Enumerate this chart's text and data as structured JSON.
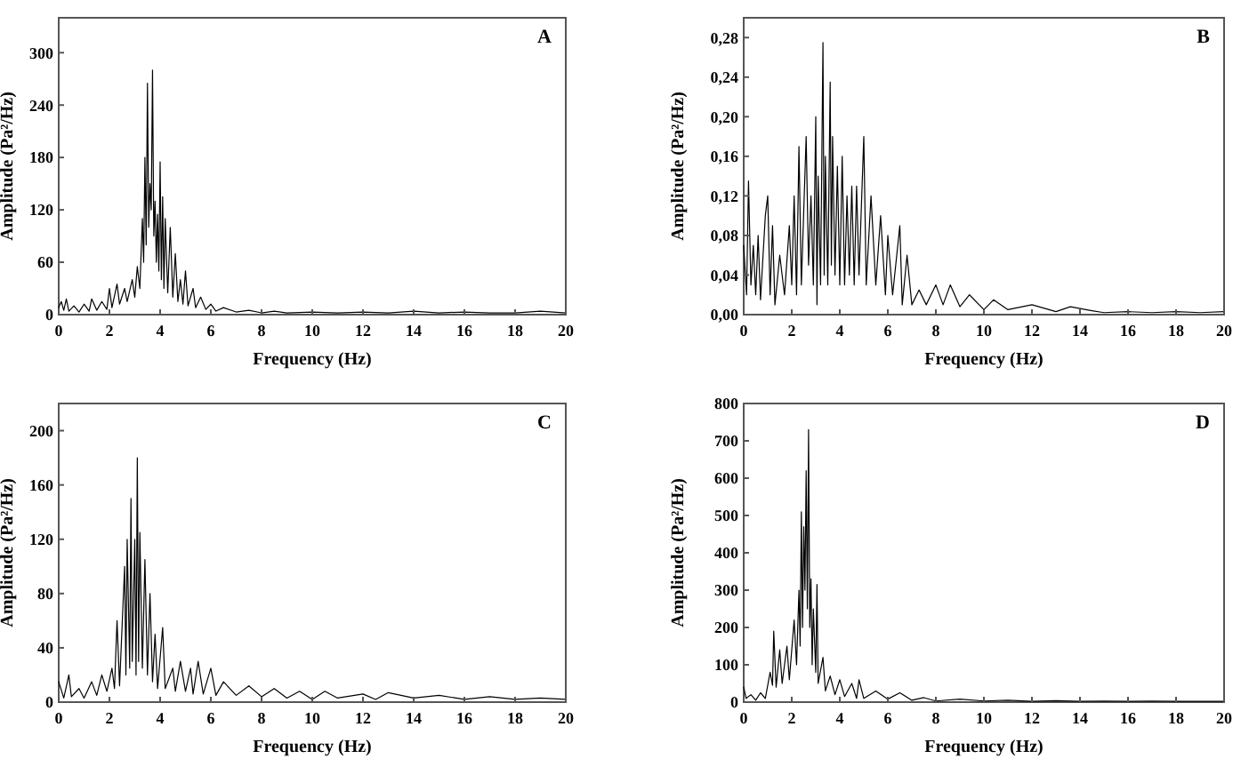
{
  "chart_data": [
    {
      "type": "line",
      "title": "A",
      "xlabel": "Frequency (Hz)",
      "ylabel": "Amplitude (Pa²/Hz)",
      "xlim": [
        0,
        20
      ],
      "xticks": [
        0,
        2,
        4,
        6,
        8,
        10,
        12,
        14,
        16,
        18,
        20
      ],
      "ylim": [
        0,
        340
      ],
      "yticks": [
        0,
        60,
        120,
        180,
        240,
        300
      ],
      "x": [
        0,
        0.1,
        0.2,
        0.3,
        0.4,
        0.6,
        0.8,
        1.0,
        1.2,
        1.3,
        1.5,
        1.7,
        1.9,
        2.0,
        2.1,
        2.3,
        2.4,
        2.6,
        2.7,
        2.9,
        3.0,
        3.1,
        3.2,
        3.3,
        3.35,
        3.4,
        3.45,
        3.5,
        3.55,
        3.6,
        3.65,
        3.7,
        3.75,
        3.8,
        3.85,
        3.9,
        3.95,
        4.0,
        4.05,
        4.1,
        4.15,
        4.2,
        4.3,
        4.4,
        4.5,
        4.6,
        4.7,
        4.8,
        4.9,
        5.0,
        5.1,
        5.3,
        5.4,
        5.6,
        5.8,
        6.0,
        6.2,
        6.5,
        7,
        7.5,
        8,
        8.5,
        9,
        10,
        11,
        12,
        13,
        14,
        15,
        16,
        17,
        18,
        19,
        20
      ],
      "series": [
        {
          "color": "#000000",
          "values": [
            8,
            15,
            5,
            18,
            4,
            10,
            3,
            12,
            4,
            18,
            5,
            15,
            6,
            30,
            8,
            35,
            12,
            30,
            15,
            40,
            20,
            55,
            30,
            110,
            60,
            180,
            80,
            265,
            100,
            150,
            120,
            280,
            90,
            130,
            60,
            115,
            50,
            175,
            40,
            135,
            30,
            110,
            25,
            100,
            20,
            70,
            15,
            40,
            12,
            50,
            10,
            30,
            8,
            20,
            6,
            12,
            4,
            8,
            3,
            5,
            2,
            4,
            2,
            3,
            2,
            3,
            2,
            4,
            2,
            3,
            2,
            2,
            4,
            2
          ]
        }
      ]
    },
    {
      "type": "line",
      "title": "B",
      "xlabel": "Frequency (Hz)",
      "ylabel": "Amplitude (Pa²/Hz)",
      "xlim": [
        0,
        20
      ],
      "xticks": [
        0,
        2,
        4,
        6,
        8,
        10,
        12,
        14,
        16,
        18,
        20
      ],
      "ylim": [
        0,
        0.3
      ],
      "yticks": [
        {
          "value": 0,
          "label": "0,00"
        },
        {
          "value": 0.04,
          "label": "0,04"
        },
        {
          "value": 0.08,
          "label": "0,08"
        },
        {
          "value": 0.12,
          "label": "0,12"
        },
        {
          "value": 0.16,
          "label": "0,16"
        },
        {
          "value": 0.2,
          "label": "0,20"
        },
        {
          "value": 0.24,
          "label": "0,24"
        },
        {
          "value": 0.28,
          "label": "0,28"
        }
      ],
      "x": [
        0,
        0.12,
        0.2,
        0.3,
        0.4,
        0.5,
        0.6,
        0.7,
        0.9,
        1.0,
        1.1,
        1.2,
        1.3,
        1.5,
        1.7,
        1.9,
        2.0,
        2.1,
        2.2,
        2.3,
        2.4,
        2.6,
        2.7,
        2.8,
        2.9,
        3.0,
        3.05,
        3.1,
        3.2,
        3.3,
        3.35,
        3.4,
        3.5,
        3.6,
        3.65,
        3.7,
        3.8,
        3.9,
        4.0,
        4.1,
        4.2,
        4.3,
        4.4,
        4.5,
        4.6,
        4.7,
        4.8,
        5.0,
        5.1,
        5.3,
        5.5,
        5.7,
        5.9,
        6.0,
        6.2,
        6.5,
        6.6,
        6.8,
        7.0,
        7.3,
        7.6,
        8.0,
        8.3,
        8.6,
        9,
        9.4,
        10,
        10.4,
        11,
        12,
        13,
        13.6,
        14.5,
        15,
        16,
        17,
        18,
        19,
        20
      ],
      "series": [
        {
          "color": "#000000",
          "values": [
            0.07,
            0.02,
            0.135,
            0.03,
            0.07,
            0.02,
            0.08,
            0.015,
            0.1,
            0.12,
            0.02,
            0.09,
            0.01,
            0.06,
            0.02,
            0.09,
            0.03,
            0.12,
            0.02,
            0.17,
            0.03,
            0.18,
            0.05,
            0.12,
            0.03,
            0.2,
            0.01,
            0.14,
            0.03,
            0.275,
            0.04,
            0.16,
            0.03,
            0.235,
            0.05,
            0.18,
            0.04,
            0.15,
            0.03,
            0.16,
            0.03,
            0.12,
            0.04,
            0.13,
            0.03,
            0.13,
            0.04,
            0.18,
            0.03,
            0.12,
            0.03,
            0.1,
            0.02,
            0.08,
            0.02,
            0.09,
            0.01,
            0.06,
            0.01,
            0.025,
            0.01,
            0.03,
            0.01,
            0.03,
            0.008,
            0.02,
            0.005,
            0.015,
            0.005,
            0.01,
            0.003,
            0.008,
            0.004,
            0.002,
            0.003,
            0.002,
            0.003,
            0.002,
            0.003
          ]
        }
      ]
    },
    {
      "type": "line",
      "title": "C",
      "xlabel": "Frequency (Hz)",
      "ylabel": "Amplitude (Pa²/Hz)",
      "xlim": [
        0,
        20
      ],
      "xticks": [
        0,
        2,
        4,
        6,
        8,
        10,
        12,
        14,
        16,
        18,
        20
      ],
      "ylim": [
        0,
        220
      ],
      "yticks": [
        0,
        40,
        80,
        120,
        160,
        200
      ],
      "x": [
        0,
        0.2,
        0.4,
        0.5,
        0.8,
        1.0,
        1.3,
        1.5,
        1.7,
        1.9,
        2.1,
        2.2,
        2.3,
        2.4,
        2.6,
        2.65,
        2.7,
        2.8,
        2.85,
        2.9,
        3.0,
        3.05,
        3.1,
        3.15,
        3.2,
        3.3,
        3.4,
        3.5,
        3.6,
        3.7,
        3.8,
        3.9,
        4.1,
        4.2,
        4.5,
        4.6,
        4.8,
        5.0,
        5.2,
        5.3,
        5.5,
        5.7,
        6.0,
        6.2,
        6.5,
        7.0,
        7.5,
        8.0,
        8.5,
        9,
        9.5,
        10,
        10.5,
        11,
        12,
        12.5,
        13,
        14,
        15,
        16,
        17,
        18,
        19,
        20
      ],
      "series": [
        {
          "color": "#000000",
          "values": [
            15,
            3,
            20,
            4,
            10,
            3,
            15,
            5,
            20,
            8,
            25,
            10,
            60,
            12,
            100,
            20,
            120,
            25,
            150,
            30,
            120,
            20,
            180,
            30,
            125,
            25,
            105,
            20,
            80,
            15,
            50,
            10,
            55,
            10,
            25,
            8,
            30,
            8,
            25,
            6,
            30,
            6,
            25,
            5,
            15,
            5,
            12,
            4,
            10,
            3,
            8,
            2,
            8,
            3,
            6,
            2,
            7,
            3,
            5,
            2,
            4,
            2,
            3,
            2
          ]
        }
      ]
    },
    {
      "type": "line",
      "title": "D",
      "xlabel": "Frequency (Hz)",
      "ylabel": "Amplitude (Pa²/Hz)",
      "xlim": [
        0,
        20
      ],
      "xticks": [
        0,
        2,
        4,
        6,
        8,
        10,
        12,
        14,
        16,
        18,
        20
      ],
      "ylim": [
        0,
        800
      ],
      "yticks": [
        0,
        100,
        200,
        300,
        400,
        500,
        600,
        700,
        800
      ],
      "x": [
        0,
        0.1,
        0.3,
        0.5,
        0.7,
        0.9,
        1.1,
        1.2,
        1.25,
        1.35,
        1.5,
        1.6,
        1.8,
        1.9,
        2.1,
        2.2,
        2.3,
        2.35,
        2.4,
        2.45,
        2.5,
        2.55,
        2.6,
        2.65,
        2.7,
        2.75,
        2.8,
        2.85,
        2.9,
        3.0,
        3.05,
        3.1,
        3.3,
        3.4,
        3.6,
        3.8,
        4.0,
        4.2,
        4.5,
        4.7,
        4.8,
        5.0,
        5.5,
        6,
        6.5,
        7,
        7.5,
        8,
        9,
        10,
        11,
        12,
        13,
        14,
        15,
        16,
        17,
        18,
        19,
        20
      ],
      "series": [
        {
          "color": "#000000",
          "values": [
            40,
            10,
            20,
            5,
            25,
            10,
            80,
            45,
            190,
            40,
            140,
            50,
            150,
            60,
            220,
            100,
            300,
            150,
            510,
            200,
            470,
            300,
            620,
            250,
            730,
            200,
            330,
            100,
            250,
            80,
            315,
            50,
            120,
            30,
            70,
            20,
            60,
            15,
            50,
            10,
            60,
            10,
            30,
            8,
            25,
            5,
            12,
            3,
            8,
            3,
            5,
            2,
            4,
            2,
            3,
            2,
            3,
            2,
            2,
            2
          ]
        }
      ]
    }
  ]
}
